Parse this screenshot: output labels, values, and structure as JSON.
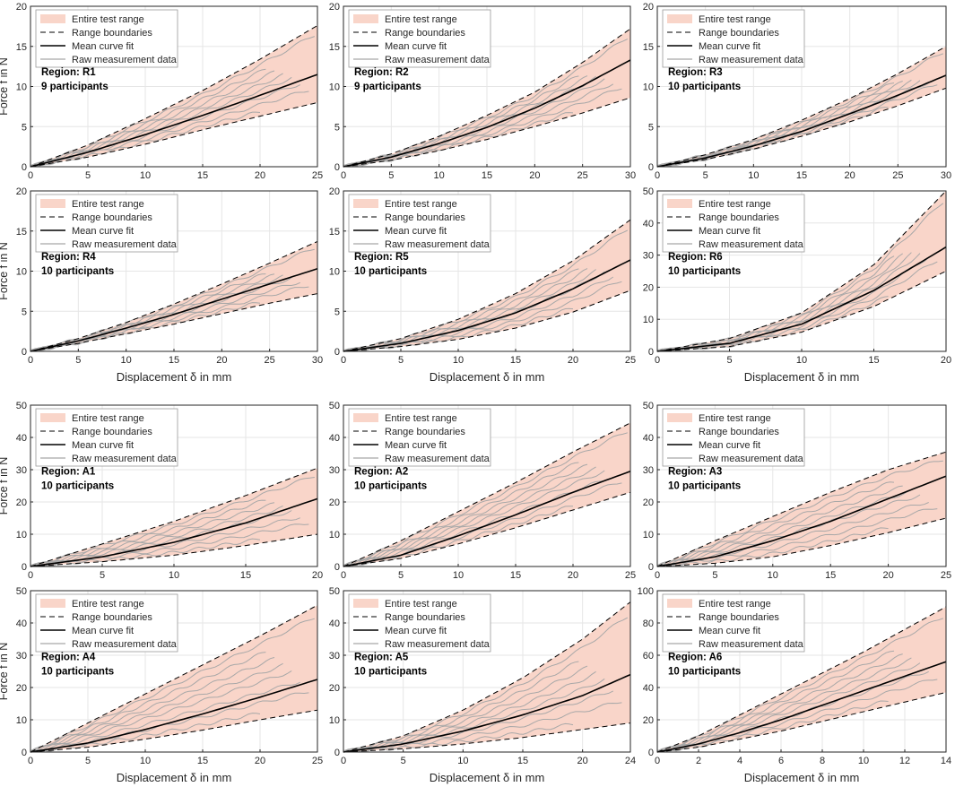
{
  "legend": {
    "range": "Entire test range",
    "bounds": "Range boundaries",
    "mean": "Mean curve fit",
    "raw": "Raw measurement data"
  },
  "colors": {
    "range_fill": "#f9d5c9",
    "mean": "#000000",
    "raw": "#a8a8a8",
    "bounds": "#000000",
    "grid": "#e6e6e6"
  },
  "chart_data": [
    {
      "type": "line",
      "region_label": "Region: R1",
      "participants_label": "9 participants",
      "xlim": [
        0,
        25
      ],
      "ylim": [
        0,
        20
      ],
      "xticks": [
        0,
        5,
        10,
        15,
        20,
        25
      ],
      "yticks": [
        0,
        5,
        10,
        15,
        20
      ],
      "ylabel": "Force f in N",
      "xlabel": "",
      "series": [
        {
          "name": "Range boundaries (upper)",
          "x": [
            0,
            5,
            10,
            15,
            20,
            25
          ],
          "y": [
            0,
            2.7,
            6.0,
            9.5,
            13.4,
            17.6
          ]
        },
        {
          "name": "Range boundaries (lower)",
          "x": [
            0,
            5,
            10,
            15,
            20,
            25
          ],
          "y": [
            0,
            1.2,
            2.8,
            4.6,
            6.3,
            8.0
          ]
        },
        {
          "name": "Mean curve fit",
          "x": [
            0,
            5,
            10,
            15,
            20,
            25
          ],
          "y": [
            0,
            1.8,
            4.0,
            6.4,
            8.9,
            11.5
          ]
        }
      ]
    },
    {
      "type": "line",
      "region_label": "Region: R2",
      "participants_label": "9 participants",
      "xlim": [
        0,
        30
      ],
      "ylim": [
        0,
        20
      ],
      "xticks": [
        0,
        5,
        10,
        15,
        20,
        25,
        30
      ],
      "yticks": [
        0,
        5,
        10,
        15,
        20
      ],
      "ylabel": "",
      "xlabel": "",
      "series": [
        {
          "name": "Range boundaries (upper)",
          "x": [
            0,
            5,
            10,
            15,
            20,
            25,
            30
          ],
          "y": [
            0,
            1.6,
            3.8,
            6.4,
            9.3,
            13.0,
            17.2
          ]
        },
        {
          "name": "Range boundaries (lower)",
          "x": [
            0,
            5,
            10,
            15,
            20,
            25,
            30
          ],
          "y": [
            0,
            0.8,
            2.0,
            3.4,
            5.0,
            6.7,
            8.6
          ]
        },
        {
          "name": "Mean curve fit",
          "x": [
            0,
            5,
            10,
            15,
            20,
            25,
            30
          ],
          "y": [
            0,
            1.2,
            2.9,
            4.9,
            7.3,
            10.1,
            13.3
          ]
        }
      ]
    },
    {
      "type": "line",
      "region_label": "Region: R3",
      "participants_label": "10 participants",
      "xlim": [
        0,
        30
      ],
      "ylim": [
        0,
        20
      ],
      "xticks": [
        0,
        5,
        10,
        15,
        20,
        25,
        30
      ],
      "yticks": [
        0,
        5,
        10,
        15,
        20
      ],
      "ylabel": "",
      "xlabel": "",
      "series": [
        {
          "name": "Range boundaries (upper)",
          "x": [
            0,
            5,
            10,
            15,
            20,
            25,
            30
          ],
          "y": [
            0,
            1.5,
            3.4,
            5.8,
            8.5,
            11.6,
            15.0
          ]
        },
        {
          "name": "Range boundaries (lower)",
          "x": [
            0,
            5,
            10,
            15,
            20,
            25,
            30
          ],
          "y": [
            0,
            0.9,
            2.2,
            3.8,
            5.6,
            7.6,
            9.8
          ]
        },
        {
          "name": "Mean curve fit",
          "x": [
            0,
            5,
            10,
            15,
            20,
            25,
            30
          ],
          "y": [
            0,
            1.1,
            2.6,
            4.4,
            6.6,
            8.9,
            11.4
          ]
        }
      ]
    },
    {
      "type": "line",
      "region_label": "Region: R4",
      "participants_label": "10 participants",
      "xlim": [
        0,
        30
      ],
      "ylim": [
        0,
        20
      ],
      "xticks": [
        0,
        5,
        10,
        15,
        20,
        25,
        30
      ],
      "yticks": [
        0,
        5,
        10,
        15,
        20
      ],
      "ylabel": "Force f in N",
      "xlabel": "Displacement δ  in mm",
      "series": [
        {
          "name": "Range boundaries (upper)",
          "x": [
            0,
            5,
            10,
            15,
            20,
            25,
            30
          ],
          "y": [
            0,
            1.6,
            3.6,
            5.9,
            8.4,
            11.0,
            13.7
          ]
        },
        {
          "name": "Range boundaries (lower)",
          "x": [
            0,
            5,
            10,
            15,
            20,
            25,
            30
          ],
          "y": [
            0,
            1.0,
            2.2,
            3.4,
            4.7,
            6.0,
            7.2
          ]
        },
        {
          "name": "Mean curve fit",
          "x": [
            0,
            5,
            10,
            15,
            20,
            25,
            30
          ],
          "y": [
            0,
            1.3,
            2.9,
            4.6,
            6.5,
            8.4,
            10.3
          ]
        }
      ]
    },
    {
      "type": "line",
      "region_label": "Region: R5",
      "participants_label": "10 participants",
      "xlim": [
        0,
        25
      ],
      "ylim": [
        0,
        20
      ],
      "xticks": [
        0,
        5,
        10,
        15,
        20,
        25
      ],
      "yticks": [
        0,
        5,
        10,
        15,
        20
      ],
      "ylabel": "",
      "xlabel": "Displacement δ  in mm",
      "series": [
        {
          "name": "Range boundaries (upper)",
          "x": [
            0,
            5,
            10,
            15,
            20,
            25
          ],
          "y": [
            0,
            1.6,
            4.0,
            7.2,
            11.3,
            16.4
          ]
        },
        {
          "name": "Range boundaries (lower)",
          "x": [
            0,
            5,
            10,
            15,
            20,
            25
          ],
          "y": [
            0,
            0.6,
            1.5,
            2.9,
            4.9,
            7.6
          ]
        },
        {
          "name": "Mean curve fit",
          "x": [
            0,
            5,
            10,
            15,
            20,
            25
          ],
          "y": [
            0,
            1.0,
            2.6,
            4.8,
            7.8,
            11.4
          ]
        }
      ]
    },
    {
      "type": "line",
      "region_label": "Region: R6",
      "participants_label": "10 participants",
      "xlim": [
        0,
        20
      ],
      "ylim": [
        0,
        50
      ],
      "xticks": [
        0,
        5,
        10,
        15,
        20
      ],
      "yticks": [
        0,
        10,
        20,
        30,
        40,
        50
      ],
      "ylabel": "",
      "xlabel": "Displacement δ  in mm",
      "series": [
        {
          "name": "Range boundaries (upper)",
          "x": [
            0,
            5,
            10,
            15,
            20
          ],
          "y": [
            0,
            4.0,
            12.0,
            27.0,
            50.0
          ]
        },
        {
          "name": "Range boundaries (lower)",
          "x": [
            0,
            5,
            10,
            15,
            20
          ],
          "y": [
            0,
            1.5,
            6.0,
            14.0,
            25.0
          ]
        },
        {
          "name": "Mean curve fit",
          "x": [
            0,
            5,
            10,
            15,
            20
          ],
          "y": [
            0,
            2.5,
            8.5,
            19.0,
            32.5
          ]
        }
      ]
    },
    {
      "type": "line",
      "region_label": "Region: A1",
      "participants_label": "10 participants",
      "xlim": [
        0,
        20
      ],
      "ylim": [
        0,
        50
      ],
      "xticks": [
        0,
        5,
        10,
        15,
        20
      ],
      "yticks": [
        0,
        10,
        20,
        30,
        40,
        50
      ],
      "ylabel": "Force f in N",
      "xlabel": "",
      "series": [
        {
          "name": "Range boundaries (upper)",
          "x": [
            0,
            5,
            10,
            15,
            20
          ],
          "y": [
            0,
            7.0,
            14.0,
            22.0,
            30.5
          ]
        },
        {
          "name": "Range boundaries (lower)",
          "x": [
            0,
            5,
            10,
            15,
            20
          ],
          "y": [
            0,
            1.5,
            3.5,
            6.5,
            10.0
          ]
        },
        {
          "name": "Mean curve fit",
          "x": [
            0,
            5,
            10,
            15,
            20
          ],
          "y": [
            0,
            3.0,
            7.5,
            13.5,
            21.0
          ]
        }
      ]
    },
    {
      "type": "line",
      "region_label": "Region: A2",
      "participants_label": "10 participants",
      "xlim": [
        0,
        25
      ],
      "ylim": [
        0,
        50
      ],
      "xticks": [
        0,
        5,
        10,
        15,
        20,
        25
      ],
      "yticks": [
        0,
        10,
        20,
        30,
        40,
        50
      ],
      "ylabel": "",
      "xlabel": "",
      "series": [
        {
          "name": "Range boundaries (upper)",
          "x": [
            0,
            5,
            10,
            15,
            20,
            25
          ],
          "y": [
            0,
            8.0,
            17.0,
            26.0,
            35.5,
            44.5
          ]
        },
        {
          "name": "Range boundaries (lower)",
          "x": [
            0,
            5,
            10,
            15,
            20,
            25
          ],
          "y": [
            0,
            2.5,
            7.0,
            12.0,
            17.5,
            23.0
          ]
        },
        {
          "name": "Mean curve fit",
          "x": [
            0,
            5,
            10,
            15,
            20,
            25
          ],
          "y": [
            0,
            3.5,
            9.5,
            16.0,
            23.0,
            29.5
          ]
        }
      ]
    },
    {
      "type": "line",
      "region_label": "Region: A3",
      "participants_label": "10 participants",
      "xlim": [
        0,
        25
      ],
      "ylim": [
        0,
        50
      ],
      "xticks": [
        0,
        5,
        10,
        15,
        20,
        25
      ],
      "yticks": [
        0,
        10,
        20,
        30,
        40,
        50
      ],
      "ylabel": "",
      "xlabel": "",
      "series": [
        {
          "name": "Range boundaries (upper)",
          "x": [
            0,
            5,
            10,
            15,
            20,
            25
          ],
          "y": [
            0,
            8.0,
            15.5,
            23.0,
            30.0,
            35.5
          ]
        },
        {
          "name": "Range boundaries (lower)",
          "x": [
            0,
            5,
            10,
            15,
            20,
            25
          ],
          "y": [
            0,
            1.0,
            3.0,
            6.5,
            10.5,
            15.0
          ]
        },
        {
          "name": "Mean curve fit",
          "x": [
            0,
            5,
            10,
            15,
            20,
            25
          ],
          "y": [
            0,
            3.0,
            8.0,
            14.0,
            21.0,
            28.0
          ]
        }
      ]
    },
    {
      "type": "line",
      "region_label": "Region: A4",
      "participants_label": "10 participants",
      "xlim": [
        0,
        25
      ],
      "ylim": [
        0,
        50
      ],
      "xticks": [
        0,
        5,
        10,
        15,
        20,
        25
      ],
      "yticks": [
        0,
        10,
        20,
        30,
        40,
        50
      ],
      "ylabel": "Force f in N",
      "xlabel": "Displacement δ  in mm",
      "series": [
        {
          "name": "Range boundaries (upper)",
          "x": [
            0,
            5,
            10,
            15,
            20,
            25
          ],
          "y": [
            0,
            9.0,
            18.0,
            27.0,
            36.0,
            45.5
          ]
        },
        {
          "name": "Range boundaries (lower)",
          "x": [
            0,
            5,
            10,
            15,
            20,
            25
          ],
          "y": [
            0,
            1.5,
            4.0,
            6.8,
            10.0,
            13.0
          ]
        },
        {
          "name": "Mean curve fit",
          "x": [
            0,
            5,
            10,
            15,
            20,
            25
          ],
          "y": [
            0,
            2.8,
            7.0,
            11.8,
            17.0,
            22.5
          ]
        }
      ]
    },
    {
      "type": "line",
      "region_label": "Region: A5",
      "participants_label": "10 participants",
      "xlim": [
        0,
        24
      ],
      "ylim": [
        0,
        50
      ],
      "xticks": [
        0,
        5,
        10,
        15,
        20,
        24
      ],
      "yticks": [
        0,
        10,
        20,
        30,
        40,
        50
      ],
      "ylabel": "",
      "xlabel": "Displacement δ  in mm",
      "series": [
        {
          "name": "Range boundaries (upper)",
          "x": [
            0,
            5,
            10,
            15,
            20,
            24
          ],
          "y": [
            0,
            5.0,
            13.0,
            23.0,
            35.0,
            46.5
          ]
        },
        {
          "name": "Range boundaries (lower)",
          "x": [
            0,
            5,
            10,
            15,
            20,
            24
          ],
          "y": [
            0,
            1.0,
            2.5,
            4.5,
            7.0,
            9.0
          ]
        },
        {
          "name": "Mean curve fit",
          "x": [
            0,
            5,
            10,
            15,
            20,
            24
          ],
          "y": [
            0,
            2.5,
            6.5,
            11.5,
            17.5,
            24.0
          ]
        }
      ]
    },
    {
      "type": "line",
      "region_label": "Region: A6",
      "participants_label": "10 participants",
      "xlim": [
        0,
        14
      ],
      "ylim": [
        0,
        100
      ],
      "xticks": [
        0,
        2,
        4,
        6,
        8,
        10,
        12,
        14
      ],
      "yticks": [
        0,
        20,
        40,
        60,
        80,
        100
      ],
      "ylabel": "",
      "xlabel": "Displacement δ  in mm",
      "series": [
        {
          "name": "Range boundaries (upper)",
          "x": [
            0,
            2,
            4,
            6,
            8,
            10,
            12,
            14
          ],
          "y": [
            0,
            10.0,
            23.0,
            36.0,
            49.0,
            62.0,
            76.0,
            90.0
          ]
        },
        {
          "name": "Range boundaries (lower)",
          "x": [
            0,
            2,
            4,
            6,
            8,
            10,
            12,
            14
          ],
          "y": [
            0,
            3.0,
            8.0,
            13.0,
            19.0,
            25.0,
            31.0,
            37.0
          ]
        },
        {
          "name": "Mean curve fit",
          "x": [
            0,
            2,
            4,
            6,
            8,
            10,
            12,
            14
          ],
          "y": [
            0,
            5.0,
            12.0,
            20.0,
            29.0,
            38.0,
            47.0,
            56.0
          ]
        }
      ]
    }
  ]
}
